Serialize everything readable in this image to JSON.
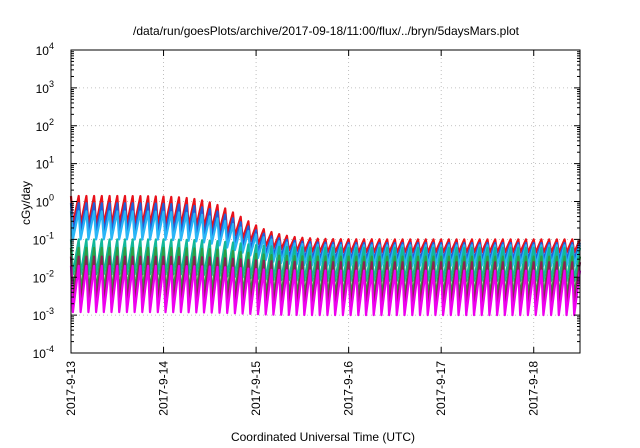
{
  "chart_data": {
    "type": "line",
    "title": "/data/run/goesPlots/archive/2017-09-18/11:00/flux/../bryn/5daysMars.plot",
    "xlabel": "Coordinated Universal Time (UTC)",
    "ylabel": "cGy/day",
    "yscale": "log",
    "ylim": [
      0.0001,
      10000
    ],
    "xlim_days": [
      0,
      5.5
    ],
    "grid": true,
    "legend": "none",
    "y_ticks": [
      {
        "base": "10",
        "exp": "-4"
      },
      {
        "base": "10",
        "exp": "-3"
      },
      {
        "base": "10",
        "exp": "-2"
      },
      {
        "base": "10",
        "exp": "-1"
      },
      {
        "base": "10",
        "exp": "0"
      },
      {
        "base": "10",
        "exp": "1"
      },
      {
        "base": "10",
        "exp": "2"
      },
      {
        "base": "10",
        "exp": "3"
      },
      {
        "base": "10",
        "exp": "4"
      }
    ],
    "x_ticks": [
      "2017-9-13",
      "2017-9-14",
      "2017-9-15",
      "2017-9-16",
      "2017-9-17",
      "2017-9-18"
    ],
    "oscillation_period_hours": 2,
    "series": [
      {
        "color": "#e8101a",
        "peak_start": 1.4,
        "peak_end": 0.1,
        "trough_start": 0.25,
        "trough_end": 0.045
      },
      {
        "color": "#1f5fd8",
        "peak_start": 0.9,
        "peak_end": 0.08,
        "trough_start": 0.15,
        "trough_end": 0.03
      },
      {
        "color": "#29b6f6",
        "peak_start": 0.55,
        "peak_end": 0.07,
        "trough_start": 0.1,
        "trough_end": 0.02
      },
      {
        "color": "#12b89a",
        "peak_start": 0.1,
        "peak_end": 0.06,
        "trough_start": 0.012,
        "trough_end": 0.008
      },
      {
        "color": "#2e9e44",
        "peak_start": 0.06,
        "peak_end": 0.035,
        "trough_start": 0.004,
        "trough_end": 0.003
      },
      {
        "color": "#8b2252",
        "peak_start": 0.035,
        "peak_end": 0.025,
        "trough_start": 0.002,
        "trough_end": 0.0017
      },
      {
        "color": "#ee00ee",
        "peak_start": 0.02,
        "peak_end": 0.015,
        "trough_start": 0.0012,
        "trough_end": 0.001
      }
    ]
  }
}
